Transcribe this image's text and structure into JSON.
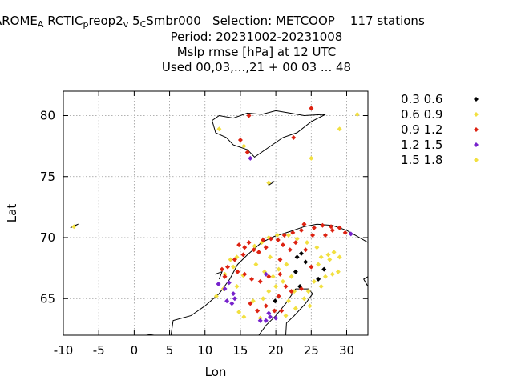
{
  "header": {
    "model_a": "AROME",
    "model_a_sub": "A",
    "model_b": "RCTIC",
    "model_b_sub": "p",
    "model_c": "reop2",
    "model_c_sub": "v",
    "model_d": "5",
    "model_d_sub": "C",
    "model_e": "Smbr000",
    "selection": "Selection: METCOOP",
    "stations": "117 stations",
    "period": "Period: 20231002-20231008",
    "param": "Mslp rmse [hPa] at  12 UTC",
    "used": "Used  00,03,...,21  + 00 03 ... 48"
  },
  "chart_data": {
    "type": "scatter",
    "xlabel": "Lon",
    "ylabel": "Lat",
    "xlim": [
      -10,
      33
    ],
    "ylim": [
      62,
      82
    ],
    "xticks": [
      -10,
      -5,
      0,
      5,
      10,
      15,
      20,
      25,
      30
    ],
    "yticks": [
      65,
      70,
      75,
      80
    ],
    "xtick_labels": [
      "-10",
      "-5",
      "0",
      "5",
      "10",
      "15",
      "20",
      "25",
      "30"
    ],
    "ytick_labels": [
      "65",
      "70",
      "75",
      "80"
    ],
    "grid": true,
    "legend_position": "right",
    "series": [
      {
        "name": "0.3 0.6",
        "color": "#000000",
        "points": [
          [
            23.0,
            68.4
          ],
          [
            23.6,
            68.7
          ],
          [
            24.2,
            68.0
          ],
          [
            22.8,
            67.2
          ],
          [
            26.8,
            67.4
          ],
          [
            26.0,
            66.6
          ],
          [
            23.4,
            66.0
          ],
          [
            19.9,
            64.8
          ]
        ]
      },
      {
        "name": "0.6 0.9",
        "color": "#f2e040",
        "points": [
          [
            31.5,
            80.1
          ],
          [
            29.0,
            78.9
          ],
          [
            25.0,
            76.5
          ],
          [
            19.0,
            74.5
          ],
          [
            12.0,
            78.9
          ],
          [
            15.5,
            77.5
          ],
          [
            -8.5,
            70.9
          ],
          [
            20.2,
            70.2
          ],
          [
            19.0,
            70.0
          ],
          [
            18.0,
            69.6
          ],
          [
            17.0,
            69.3
          ],
          [
            14.5,
            68.4
          ],
          [
            13.6,
            68.2
          ],
          [
            14.0,
            67.6
          ],
          [
            12.8,
            67.0
          ],
          [
            15.4,
            66.9
          ],
          [
            14.5,
            66.0
          ],
          [
            12.6,
            65.8
          ],
          [
            11.6,
            65.2
          ],
          [
            14.8,
            63.9
          ],
          [
            15.5,
            63.5
          ],
          [
            17.8,
            63.4
          ],
          [
            16.8,
            64.8
          ],
          [
            18.2,
            65.0
          ],
          [
            19.0,
            65.6
          ],
          [
            20.0,
            66.0
          ],
          [
            21.0,
            66.4
          ],
          [
            19.6,
            66.8
          ],
          [
            20.4,
            67.4
          ],
          [
            21.5,
            67.8
          ],
          [
            22.2,
            66.8
          ],
          [
            22.6,
            65.6
          ],
          [
            21.8,
            64.8
          ],
          [
            22.8,
            64.2
          ],
          [
            24.0,
            65.0
          ],
          [
            24.6,
            65.6
          ],
          [
            25.4,
            66.4
          ],
          [
            26.4,
            66.0
          ],
          [
            27.0,
            66.8
          ],
          [
            28.0,
            67.0
          ],
          [
            28.8,
            67.2
          ],
          [
            27.4,
            68.6
          ],
          [
            28.2,
            68.8
          ],
          [
            27.6,
            68.2
          ],
          [
            26.4,
            68.4
          ],
          [
            29.0,
            68.4
          ],
          [
            25.8,
            69.2
          ],
          [
            24.4,
            69.6
          ],
          [
            23.0,
            69.9
          ],
          [
            21.8,
            70.2
          ],
          [
            26.0,
            67.8
          ],
          [
            18.4,
            67.2
          ],
          [
            17.2,
            67.8
          ],
          [
            19.2,
            68.4
          ],
          [
            24.8,
            64.4
          ],
          [
            21.4,
            63.6
          ]
        ]
      },
      {
        "name": "0.9 1.2",
        "color": "#dd2211",
        "points": [
          [
            25.0,
            80.6
          ],
          [
            16.2,
            80.0
          ],
          [
            22.5,
            78.2
          ],
          [
            16.0,
            77.0
          ],
          [
            15.0,
            78.0
          ],
          [
            14.8,
            69.4
          ],
          [
            15.6,
            69.2
          ],
          [
            16.2,
            69.6
          ],
          [
            16.9,
            69.0
          ],
          [
            18.2,
            69.8
          ],
          [
            19.3,
            69.9
          ],
          [
            20.3,
            69.8
          ],
          [
            21.2,
            70.2
          ],
          [
            22.4,
            70.4
          ],
          [
            23.6,
            70.6
          ],
          [
            24.0,
            71.1
          ],
          [
            25.4,
            70.8
          ],
          [
            26.6,
            71.0
          ],
          [
            27.8,
            70.9
          ],
          [
            29.0,
            70.8
          ],
          [
            28.0,
            70.6
          ],
          [
            29.8,
            70.4
          ],
          [
            27.0,
            70.2
          ],
          [
            25.2,
            70.2
          ],
          [
            22.8,
            69.6
          ],
          [
            21.0,
            69.4
          ],
          [
            18.6,
            69.2
          ],
          [
            17.6,
            68.8
          ],
          [
            15.4,
            68.6
          ],
          [
            14.2,
            68.2
          ],
          [
            13.2,
            67.6
          ],
          [
            12.4,
            67.4
          ],
          [
            12.8,
            66.8
          ],
          [
            14.6,
            67.2
          ],
          [
            15.6,
            67.0
          ],
          [
            16.6,
            66.6
          ],
          [
            17.8,
            66.4
          ],
          [
            19.0,
            66.8
          ],
          [
            20.6,
            67.0
          ],
          [
            21.4,
            66.0
          ],
          [
            22.2,
            65.6
          ],
          [
            23.6,
            65.8
          ],
          [
            20.4,
            65.2
          ],
          [
            18.6,
            64.4
          ],
          [
            19.8,
            64.0
          ],
          [
            20.8,
            64.0
          ],
          [
            16.4,
            64.6
          ],
          [
            17.4,
            64.0
          ],
          [
            25.0,
            67.6
          ],
          [
            24.2,
            69.0
          ],
          [
            20.6,
            68.2
          ],
          [
            22.0,
            69.0
          ]
        ]
      },
      {
        "name": "1.2 1.5",
        "color": "#7722cc",
        "points": [
          [
            16.4,
            76.5
          ],
          [
            30.6,
            70.3
          ],
          [
            11.9,
            66.2
          ],
          [
            12.8,
            65.8
          ],
          [
            13.4,
            66.3
          ],
          [
            14.0,
            65.4
          ],
          [
            13.1,
            64.8
          ],
          [
            13.8,
            64.6
          ],
          [
            14.2,
            65.0
          ],
          [
            18.6,
            67.0
          ],
          [
            19.2,
            63.5
          ],
          [
            20.0,
            63.4
          ],
          [
            18.6,
            63.2
          ],
          [
            17.8,
            63.2
          ],
          [
            19.0,
            63.8
          ]
        ]
      },
      {
        "name": "1.5 1.8",
        "color": "#f2e040",
        "points": []
      }
    ]
  }
}
